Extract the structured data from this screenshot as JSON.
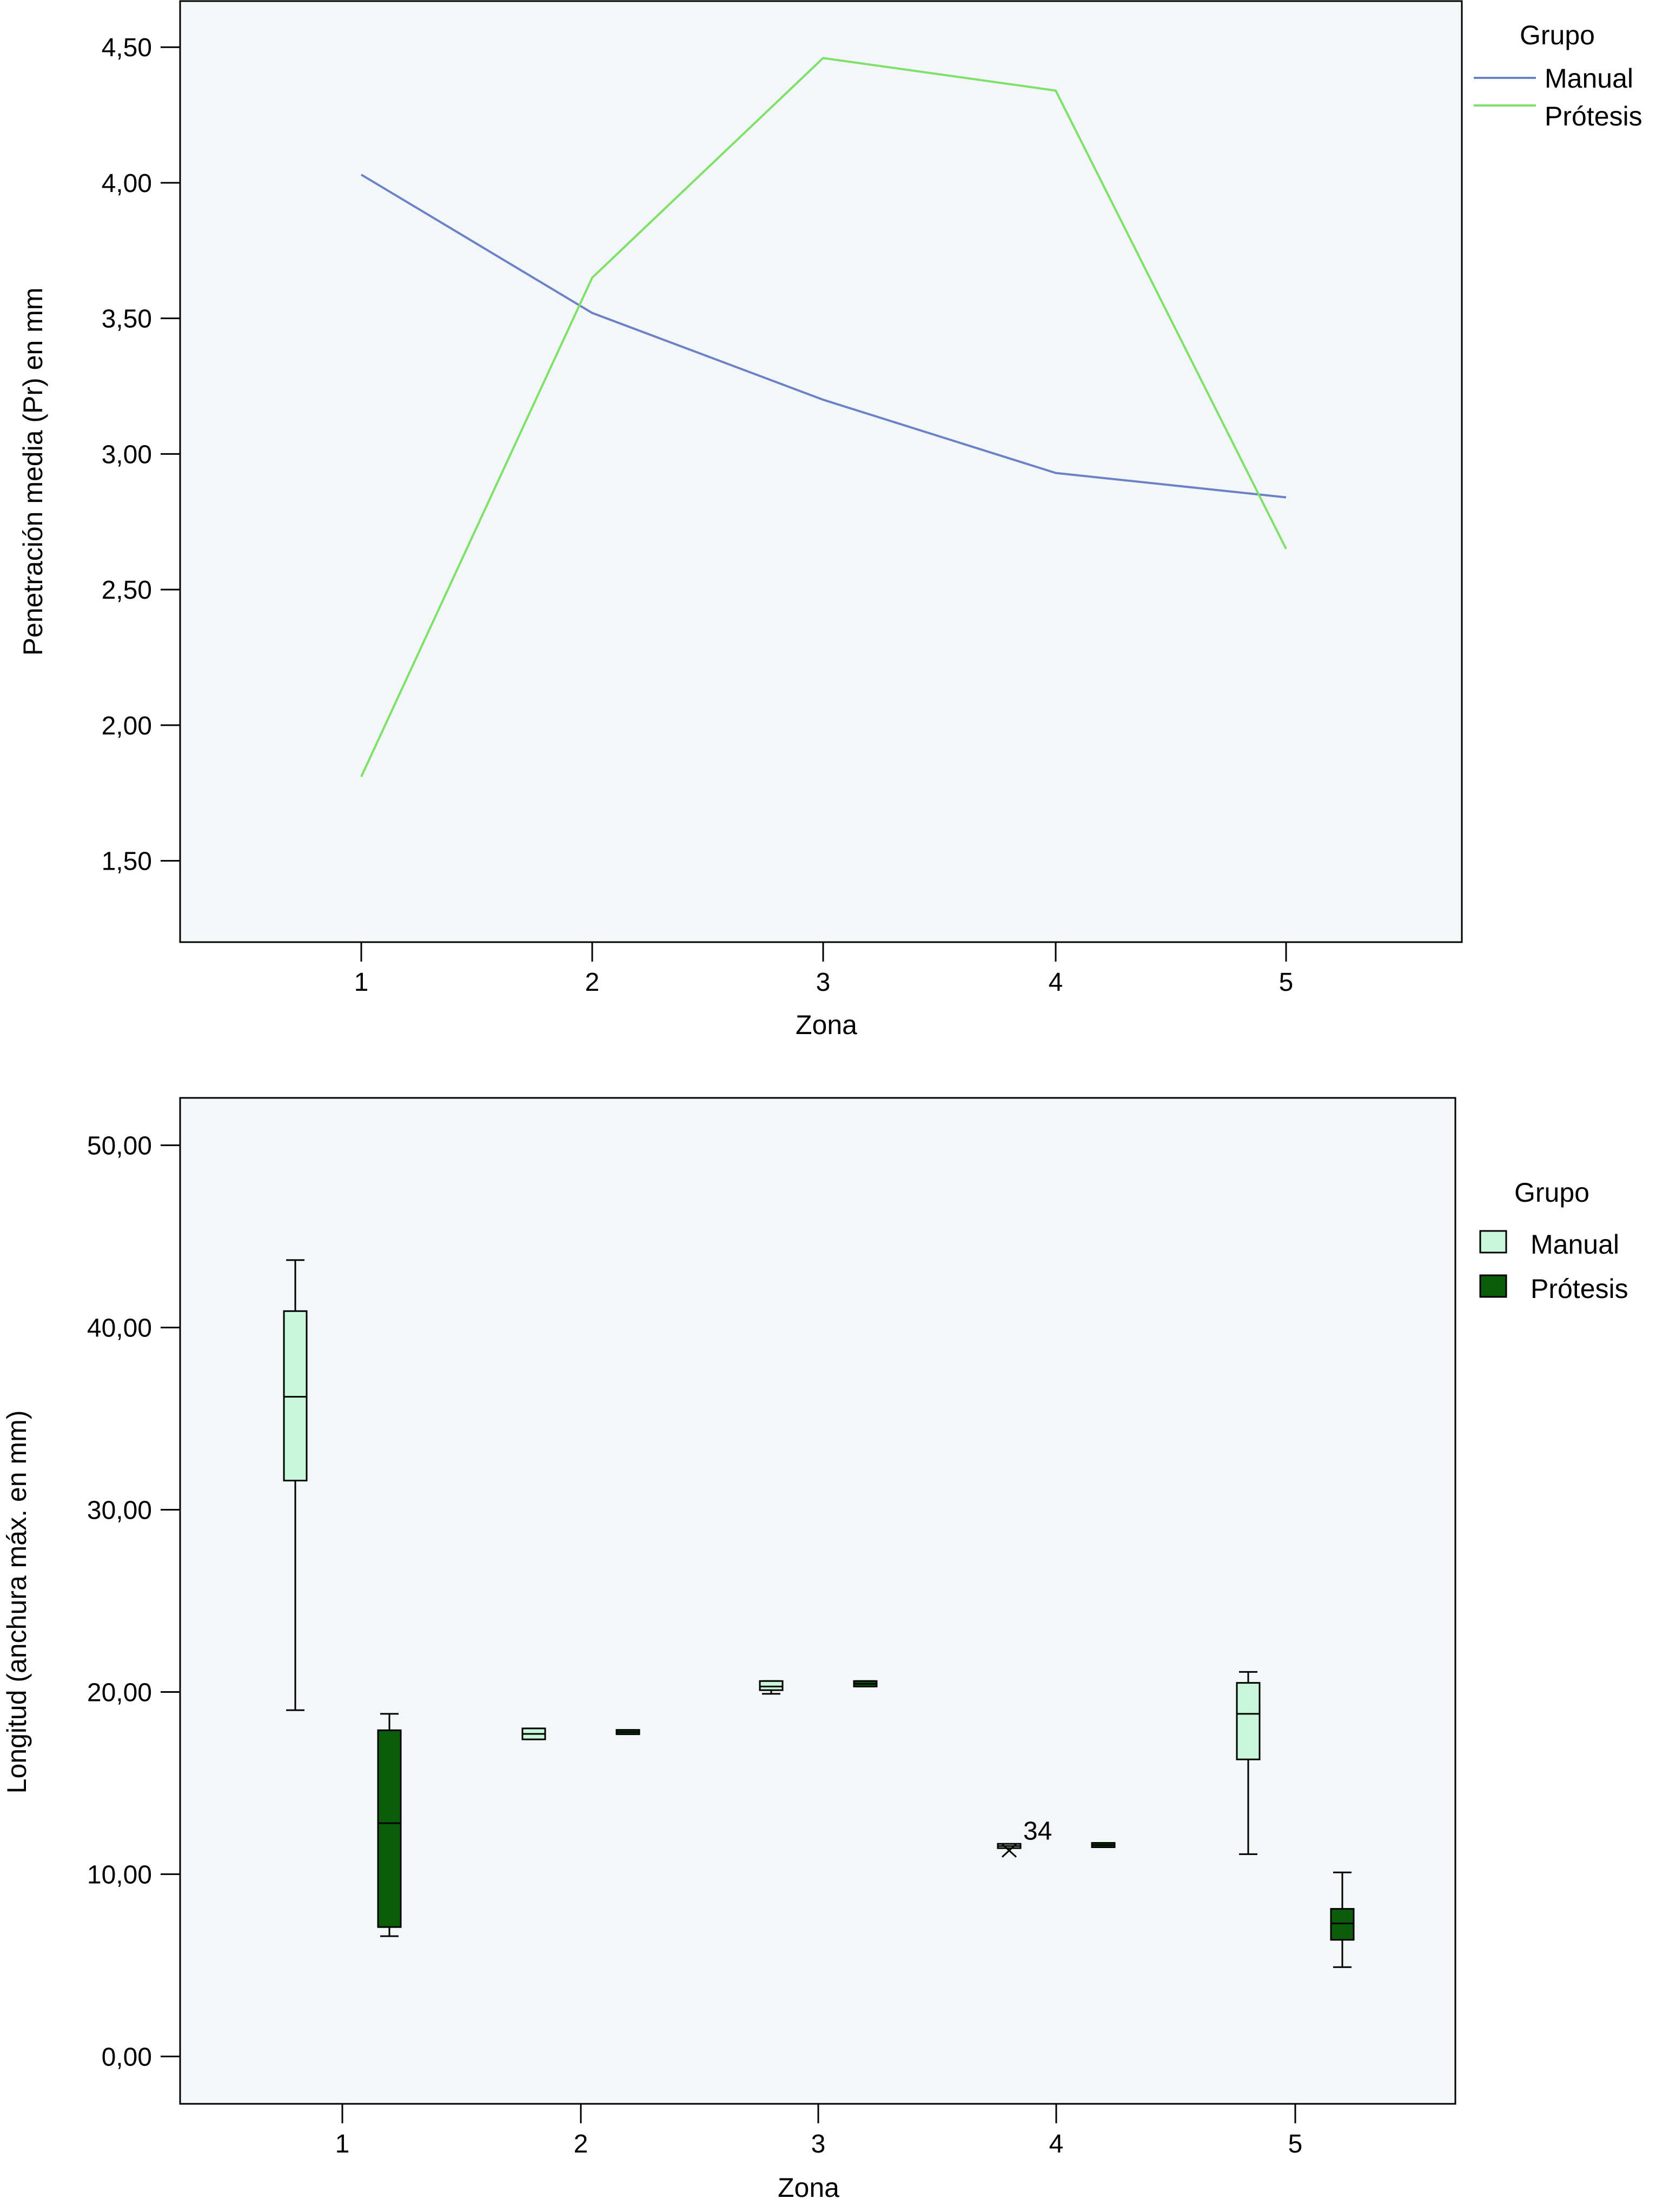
{
  "chart_data": [
    {
      "type": "line",
      "xlabel": "Zona",
      "ylabel": "Penetración media (Pr) en mm",
      "categories": [
        "1",
        "2",
        "3",
        "4",
        "5"
      ],
      "ylim": [
        1.2,
        4.67
      ],
      "yticks": [
        "1,50",
        "2,00",
        "2,50",
        "3,00",
        "3,50",
        "4,00",
        "4,50"
      ],
      "ytick_values": [
        1.5,
        2.0,
        2.5,
        3.0,
        3.5,
        4.0,
        4.5
      ],
      "legend_title": "Grupo",
      "legend_position": "top-right outside",
      "grid": false,
      "series": [
        {
          "name": "Manual",
          "color": "#6b82c9",
          "values": [
            4.03,
            3.52,
            3.2,
            2.93,
            2.84
          ]
        },
        {
          "name": "Prótesis",
          "color": "#7fe06a",
          "values": [
            1.81,
            3.65,
            4.46,
            4.34,
            2.65
          ]
        }
      ]
    },
    {
      "type": "box",
      "xlabel": "Zona",
      "ylabel": "Longitud (anchura máx. en mm)",
      "categories": [
        "1",
        "2",
        "3",
        "4",
        "5"
      ],
      "ylim": [
        -2.6,
        52.6
      ],
      "yticks": [
        "0,00",
        "10,00",
        "20,00",
        "30,00",
        "40,00",
        "50,00"
      ],
      "ytick_values": [
        0,
        10,
        20,
        30,
        40,
        50
      ],
      "legend_title": "Grupo",
      "legend_position": "right outside",
      "grid": false,
      "series": [
        {
          "name": "Manual",
          "color": "#c9f7d9",
          "boxes": [
            {
              "min": 19.0,
              "q1": 31.6,
              "median": 36.2,
              "q3": 40.9,
              "max": 43.7
            },
            {
              "min": 17.4,
              "q1": 17.4,
              "median": 17.7,
              "q3": 18.0,
              "max": 18.0
            },
            {
              "min": 19.9,
              "q1": 20.1,
              "median": 20.3,
              "q3": 20.6,
              "max": 20.6
            },
            {
              "min": 11.5,
              "q1": 11.5,
              "median": 11.55,
              "q3": 11.6,
              "max": 11.6
            },
            {
              "min": 11.1,
              "q1": 16.3,
              "median": 18.8,
              "q3": 20.5,
              "max": 21.1
            }
          ],
          "outliers": [
            {
              "category": "4",
              "value": 11.3,
              "label": "34"
            }
          ]
        },
        {
          "name": "Prótesis",
          "color": "#0b5c0b",
          "boxes": [
            {
              "min": 6.6,
              "q1": 7.1,
              "median": 12.8,
              "q3": 17.9,
              "max": 18.8
            },
            {
              "min": 17.7,
              "q1": 17.7,
              "median": 17.8,
              "q3": 17.9,
              "max": 17.9
            },
            {
              "min": 20.3,
              "q1": 20.3,
              "median": 20.45,
              "q3": 20.6,
              "max": 20.6
            },
            {
              "min": 11.5,
              "q1": 11.5,
              "median": 11.6,
              "q3": 11.7,
              "max": 11.7
            },
            {
              "min": 4.9,
              "q1": 6.4,
              "median": 7.3,
              "q3": 8.1,
              "max": 10.1
            }
          ]
        }
      ]
    }
  ]
}
